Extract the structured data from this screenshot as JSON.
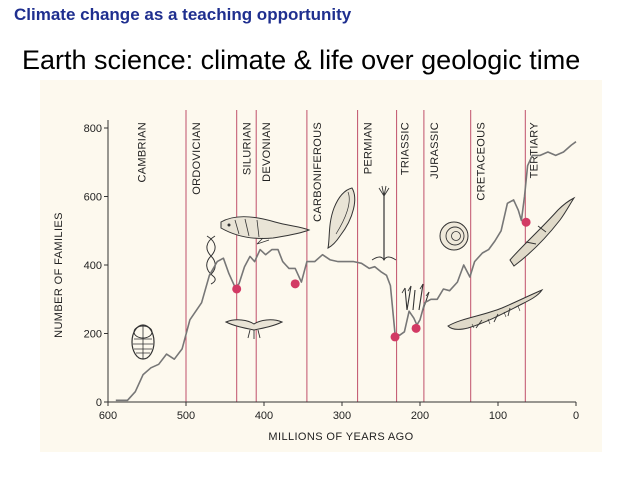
{
  "slide": {
    "header": "Climate change as a teaching opportunity",
    "title": "Earth science:  climate & life over geologic time"
  },
  "colors": {
    "header": "#1f2f8f",
    "period_line": "#c0506a",
    "extinction_marker": "#d23a64",
    "curve": "#777777",
    "figure_bg": "#fdf9ee"
  },
  "chart_data": {
    "type": "line",
    "xlabel": "MILLIONS OF YEARS AGO",
    "ylabel": "NUMBER OF FAMILIES",
    "xlim": [
      600,
      0
    ],
    "ylim": [
      0,
      800
    ],
    "x_ticks": [
      600,
      500,
      400,
      300,
      200,
      100,
      0
    ],
    "y_ticks": [
      0,
      200,
      400,
      600,
      800
    ],
    "grid": false,
    "periods": [
      {
        "name": "CAMBRIAN",
        "start": 570,
        "end": 500
      },
      {
        "name": "ORDOVICIAN",
        "start": 500,
        "end": 435
      },
      {
        "name": "SILURIAN",
        "start": 435,
        "end": 410
      },
      {
        "name": "DEVONIAN",
        "start": 410,
        "end": 345
      },
      {
        "name": "CARBONIFEROUS",
        "start": 345,
        "end": 280
      },
      {
        "name": "PERMIAN",
        "start": 280,
        "end": 230
      },
      {
        "name": "TRIASSIC",
        "start": 230,
        "end": 195
      },
      {
        "name": "JURASSIC",
        "start": 195,
        "end": 135
      },
      {
        "name": "CRETACEOUS",
        "start": 135,
        "end": 65
      },
      {
        "name": "TERTIARY",
        "start": 65,
        "end": 0
      }
    ],
    "boundaries": [
      500,
      435,
      410,
      345,
      280,
      230,
      195,
      135,
      65
    ],
    "series": [
      {
        "x": [
          590,
          575,
          565,
          555,
          545,
          535,
          525,
          515,
          505,
          495,
          480,
          470,
          460,
          452,
          445,
          437,
          432,
          425,
          418,
          412,
          405,
          398,
          390,
          382,
          376,
          372,
          368,
          360,
          352,
          345,
          335,
          325,
          315,
          305,
          295,
          285,
          275,
          265,
          258,
          250,
          243,
          238,
          232,
          226,
          220,
          214,
          208,
          204,
          200,
          194,
          186,
          178,
          170,
          162,
          152,
          144,
          136,
          130,
          120,
          112,
          104,
          96,
          88,
          80,
          74,
          70,
          66,
          62,
          56,
          46,
          36,
          26,
          16,
          6,
          0
        ],
        "y": [
          5,
          5,
          30,
          80,
          100,
          110,
          140,
          125,
          155,
          240,
          290,
          370,
          410,
          420,
          375,
          335,
          345,
          395,
          425,
          410,
          445,
          430,
          445,
          445,
          410,
          400,
          390,
          390,
          350,
          410,
          410,
          430,
          415,
          410,
          410,
          410,
          405,
          390,
          395,
          380,
          370,
          340,
          200,
          195,
          205,
          265,
          245,
          225,
          240,
          290,
          300,
          300,
          330,
          325,
          350,
          400,
          365,
          410,
          435,
          445,
          470,
          500,
          580,
          590,
          560,
          530,
          600,
          690,
          720,
          720,
          730,
          720,
          730,
          750,
          760
        ]
      }
    ],
    "extinction_events": [
      {
        "x": 435,
        "y": 330
      },
      {
        "x": 360,
        "y": 345
      },
      {
        "x": 232,
        "y": 190
      },
      {
        "x": 205,
        "y": 215
      },
      {
        "x": 64,
        "y": 525
      }
    ]
  }
}
